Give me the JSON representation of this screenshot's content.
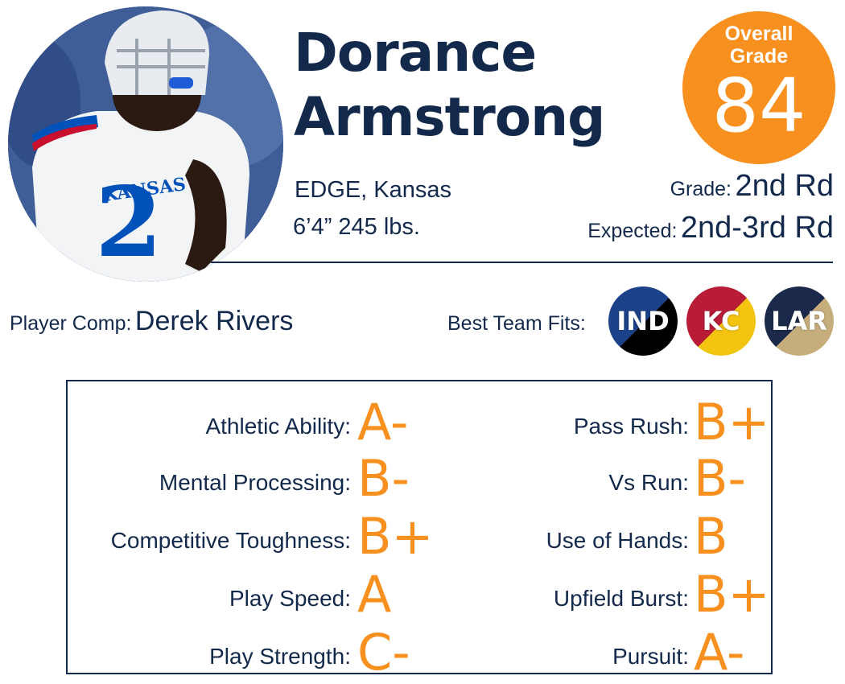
{
  "player": {
    "first_name": "Dorance",
    "last_name": "Armstrong",
    "position_school": "EDGE, Kansas",
    "measurements": "6’4” 245 lbs."
  },
  "overall": {
    "label_line1": "Overall",
    "label_line2": "Grade",
    "value": "84",
    "color": "#f7901e"
  },
  "grade": {
    "label": "Grade:",
    "value": "2nd Rd"
  },
  "expected": {
    "label": "Expected:",
    "value": "2nd-3rd Rd"
  },
  "player_comp": {
    "label": "Player Comp:",
    "value": "Derek Rivers"
  },
  "team_fits": {
    "label": "Best Team Fits:",
    "teams": [
      {
        "abbr": "IND",
        "colors": [
          "#1d4289",
          "#000000"
        ]
      },
      {
        "abbr": "KC",
        "colors": [
          "#b81c37",
          "#f2c30f"
        ]
      },
      {
        "abbr": "LAR",
        "colors": [
          "#1b2a4b",
          "#c6ad7c"
        ]
      }
    ]
  },
  "traits_left": [
    {
      "label": "Athletic Ability:",
      "grade": "A-"
    },
    {
      "label": "Mental Processing:",
      "grade": "B-"
    },
    {
      "label": "Competitive Toughness:",
      "grade": "B+"
    },
    {
      "label": "Play Speed:",
      "grade": "A"
    },
    {
      "label": "Play Strength:",
      "grade": "C-"
    }
  ],
  "traits_right": [
    {
      "label": "Pass Rush:",
      "grade": "B+"
    },
    {
      "label": "Vs Run:",
      "grade": "B-"
    },
    {
      "label": "Use of Hands:",
      "grade": "B"
    },
    {
      "label": "Upfield Burst:",
      "grade": "B+"
    },
    {
      "label": "Pursuit:",
      "grade": "A-"
    }
  ],
  "colors": {
    "navy": "#13294b",
    "orange": "#f7901e"
  }
}
